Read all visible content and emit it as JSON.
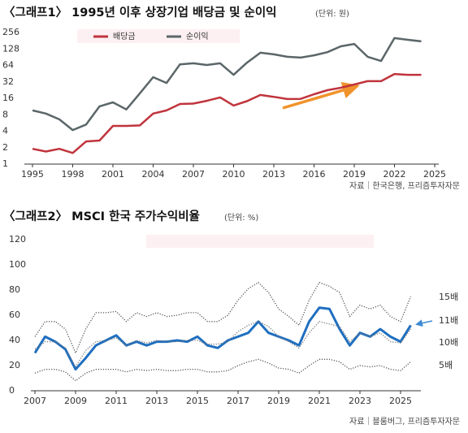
{
  "chart_data": [
    {
      "type": "line",
      "title": "〈그래프1〉 1995년 이후 상장기업 배당금 및 순이익",
      "unit": "(단위: 원)",
      "source": "자료｜한국은행, 프리즘투자자문",
      "log_scale": true,
      "legend": "top-left",
      "x": [
        1995,
        1996,
        1997,
        1998,
        1999,
        2000,
        2001,
        2002,
        2003,
        2004,
        2005,
        2006,
        2007,
        2008,
        2009,
        2010,
        2011,
        2012,
        2013,
        2014,
        2015,
        2016,
        2017,
        2018,
        2019,
        2020,
        2021,
        2022,
        2023,
        2024
      ],
      "xlim": [
        1994.7,
        2025.3
      ],
      "xticks": [
        1995,
        1998,
        2001,
        2004,
        2007,
        2010,
        2013,
        2016,
        2019,
        2022,
        2025
      ],
      "ylim": [
        1,
        256
      ],
      "yticks": [
        1,
        2,
        4,
        8,
        16,
        32,
        64,
        128,
        256
      ],
      "series": [
        {
          "name": "배당금",
          "color": "#c0343c",
          "values": [
            1.9,
            1.7,
            1.9,
            1.6,
            2.6,
            2.7,
            5,
            5,
            5.1,
            8.4,
            9.6,
            12.6,
            12.8,
            14.4,
            16.6,
            11.8,
            14.2,
            18.4,
            17,
            15.5,
            15.6,
            19,
            22.5,
            25,
            28.6,
            33,
            33,
            44.6,
            43,
            43
          ]
        },
        {
          "name": "순이익",
          "color": "#5b6669",
          "values": [
            9.6,
            8.4,
            6.6,
            4.2,
            5.3,
            11.4,
            13.5,
            10,
            19.6,
            39,
            30.6,
            67,
            70,
            65,
            70,
            43,
            72,
            109,
            102,
            92,
            89,
            98,
            112,
            143,
            158,
            92,
            77,
            202,
            188,
            176
          ]
        }
      ]
    },
    {
      "type": "line",
      "title": "〈그래프2〉 MSCI 한국 주가수익비율",
      "unit": "(단위: %)",
      "source": "자료｜블룸버그, 프리즘투자자문",
      "x": [
        2007,
        2007.5,
        2008,
        2008.5,
        2009,
        2009.5,
        2010,
        2010.5,
        2011,
        2011.5,
        2012,
        2012.5,
        2013,
        2013.5,
        2014,
        2014.5,
        2015,
        2015.5,
        2016,
        2016.5,
        2017,
        2017.5,
        2018,
        2018.5,
        2019,
        2019.5,
        2020,
        2020.5,
        2021,
        2021.5,
        2022,
        2022.5,
        2023,
        2023.5,
        2024,
        2024.5,
        2025,
        2025.5
      ],
      "xlim": [
        2007,
        2026
      ],
      "xticks": [
        2007,
        2009,
        2011,
        2013,
        2015,
        2017,
        2019,
        2021,
        2023,
        2025
      ],
      "ylim": [
        0,
        120
      ],
      "yticks": [
        0,
        20,
        40,
        60,
        80,
        100,
        120
      ],
      "series": [
        {
          "name": "15배",
          "color": "#555555",
          "style": "dotted",
          "values": [
            43,
            55,
            55,
            49,
            30,
            49,
            62,
            62,
            63,
            55,
            62,
            59,
            62,
            59,
            60,
            62,
            62,
            55,
            55,
            60,
            72,
            81,
            86,
            78,
            65,
            59,
            52,
            72,
            86,
            83,
            78,
            59,
            68,
            65,
            68,
            59,
            55,
            75
          ]
        },
        {
          "name": "11배",
          "color": "#1f6fc0",
          "style": "solid",
          "values": [
            30,
            43,
            39,
            33,
            17,
            26,
            36,
            40,
            44,
            36,
            39,
            36,
            39,
            39,
            40,
            39,
            43,
            36,
            34,
            40,
            43,
            46,
            55,
            46,
            43,
            40,
            36,
            55,
            66,
            65,
            49,
            36,
            46,
            43,
            49,
            43,
            39,
            52
          ]
        },
        {
          "name": "10배",
          "color": "#777777",
          "style": "dotted",
          "values": [
            33,
            39,
            39,
            34,
            19,
            32,
            39,
            40,
            42,
            36,
            40,
            38,
            40,
            39,
            39,
            40,
            40,
            37,
            37,
            39,
            47,
            52,
            55,
            51,
            43,
            39,
            34,
            46,
            55,
            53,
            51,
            39,
            46,
            43,
            46,
            39,
            38,
            49
          ]
        },
        {
          "name": "5배",
          "color": "#555555",
          "style": "dotted",
          "values": [
            14,
            17,
            17,
            15,
            8,
            14,
            17,
            17,
            17,
            15,
            17,
            16,
            17,
            16,
            16,
            17,
            17,
            15,
            15,
            16,
            20,
            23,
            25,
            22,
            18,
            17,
            14,
            20,
            25,
            25,
            23,
            17,
            20,
            19,
            20,
            17,
            16,
            23
          ]
        }
      ]
    }
  ]
}
